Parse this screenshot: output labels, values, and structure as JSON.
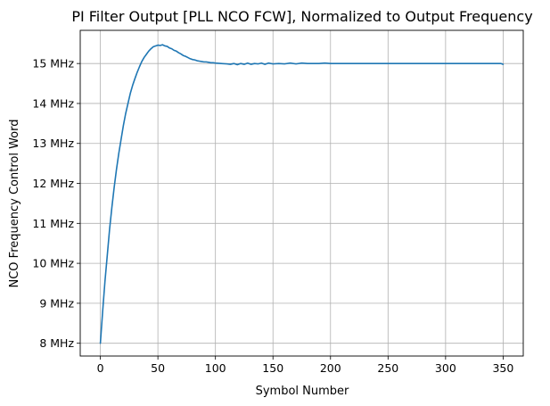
{
  "chart_data": {
    "type": "line",
    "title": "PI Filter Output [PLL NCO FCW], Normalized to Output Frequency",
    "xlabel": "Symbol Number",
    "ylabel": "NCO Frequency Control Word",
    "xlim": [
      -17.5,
      367.5
    ],
    "ylim": [
      7.68,
      15.83
    ],
    "xticks": [
      0,
      50,
      100,
      150,
      200,
      250,
      300,
      350
    ],
    "xtick_labels": [
      "0",
      "50",
      "100",
      "150",
      "200",
      "250",
      "300",
      "350"
    ],
    "yticks": [
      8,
      9,
      10,
      11,
      12,
      13,
      14,
      15
    ],
    "ytick_labels": [
      "8 MHz",
      "9 MHz",
      "10 MHz",
      "11 MHz",
      "12 MHz",
      "13 MHz",
      "14 MHz",
      "15 MHz"
    ],
    "grid": true,
    "line_color": "#1f77b4",
    "grid_color": "#b0b0b0",
    "series": [
      {
        "x": [
          0,
          2,
          4,
          6,
          8,
          10,
          12,
          14,
          16,
          18,
          20,
          22,
          24,
          26,
          28,
          30,
          32,
          34,
          36,
          38,
          40,
          42,
          44,
          46,
          48,
          50,
          52,
          54,
          56,
          58,
          60,
          62,
          64,
          66,
          68,
          70,
          72,
          74,
          76,
          78,
          80,
          82,
          84,
          86,
          88,
          90,
          92,
          94,
          96,
          98,
          100,
          105,
          110,
          113,
          116,
          119,
          122,
          125,
          128,
          131,
          134,
          137,
          140,
          143,
          146,
          150,
          155,
          160,
          165,
          170,
          175,
          180,
          185,
          190,
          195,
          200,
          210,
          220,
          230,
          240,
          250,
          260,
          270,
          280,
          290,
          300,
          310,
          320,
          330,
          340,
          345,
          348,
          350
        ],
        "values": [
          8.0,
          8.8,
          9.55,
          10.2,
          10.85,
          11.4,
          11.9,
          12.35,
          12.75,
          13.1,
          13.45,
          13.75,
          14.0,
          14.25,
          14.45,
          14.62,
          14.78,
          14.92,
          15.05,
          15.15,
          15.23,
          15.31,
          15.37,
          15.42,
          15.44,
          15.46,
          15.45,
          15.47,
          15.44,
          15.43,
          15.39,
          15.37,
          15.33,
          15.31,
          15.27,
          15.24,
          15.2,
          15.18,
          15.15,
          15.12,
          15.1,
          15.09,
          15.07,
          15.06,
          15.05,
          15.04,
          15.04,
          15.03,
          15.02,
          15.02,
          15.01,
          15.0,
          14.99,
          14.98,
          15.0,
          14.97,
          15.0,
          14.98,
          15.01,
          14.98,
          15.0,
          14.99,
          15.01,
          14.98,
          15.01,
          14.99,
          15.0,
          14.99,
          15.01,
          14.99,
          15.01,
          15.0,
          15.0,
          15.0,
          15.01,
          15.0,
          15.0,
          15.0,
          15.0,
          15.0,
          15.0,
          15.0,
          15.0,
          15.0,
          15.0,
          15.0,
          15.0,
          15.0,
          15.0,
          15.0,
          15.0,
          15.0,
          14.98
        ]
      }
    ]
  }
}
